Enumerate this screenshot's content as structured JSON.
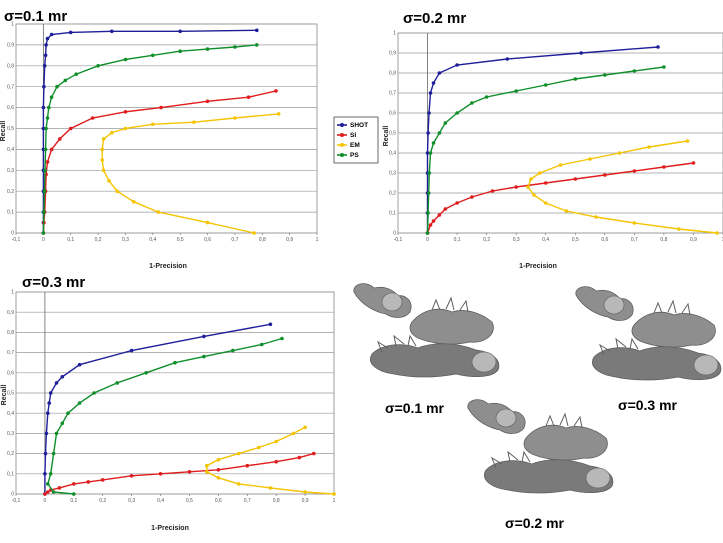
{
  "legend_entries": [
    {
      "name": "SHOT",
      "color": "#1f1f99"
    },
    {
      "name": "SI",
      "color": "#e01c1c"
    },
    {
      "name": "EM",
      "color": "#f5c400"
    },
    {
      "name": "PS",
      "color": "#0f8f2a"
    }
  ],
  "renders": [
    {
      "label": "σ=0.1 mr"
    },
    {
      "label": "σ=0.3 mr"
    },
    {
      "label": "σ=0.2 mr"
    }
  ],
  "chart_data": [
    {
      "type": "line",
      "title": "σ=0.1 mr",
      "xlabel": "1-Precision",
      "ylabel": "Recall",
      "xlim": [
        -0.1,
        1.0
      ],
      "ylim": [
        0,
        1.0
      ],
      "xticks": [
        "-0,1",
        "0",
        "0,1",
        "0,2",
        "0,3",
        "0,4",
        "0,5",
        "0,6",
        "0,7",
        "0,8",
        "0,9",
        "1"
      ],
      "yticks": [
        "0",
        "0,1",
        "0,2",
        "0,3",
        "0,4",
        "0,5",
        "0,6",
        "0,7",
        "0,8",
        "0,9",
        "1"
      ],
      "grid": true,
      "series": [
        {
          "name": "SHOT",
          "points": [
            [
              0,
              0
            ],
            [
              0,
              0.05
            ],
            [
              0,
              0.1
            ],
            [
              0,
              0.2
            ],
            [
              0,
              0.3
            ],
            [
              0,
              0.4
            ],
            [
              0,
              0.5
            ],
            [
              0,
              0.6
            ],
            [
              0.002,
              0.7
            ],
            [
              0.005,
              0.8
            ],
            [
              0.008,
              0.85
            ],
            [
              0.01,
              0.9
            ],
            [
              0.015,
              0.93
            ],
            [
              0.03,
              0.95
            ],
            [
              0.1,
              0.96
            ],
            [
              0.25,
              0.965
            ],
            [
              0.5,
              0.965
            ],
            [
              0.78,
              0.97
            ]
          ]
        },
        {
          "name": "SI",
          "points": [
            [
              0,
              0
            ],
            [
              0.002,
              0.05
            ],
            [
              0.005,
              0.1
            ],
            [
              0.008,
              0.2
            ],
            [
              0.01,
              0.28
            ],
            [
              0.015,
              0.34
            ],
            [
              0.03,
              0.4
            ],
            [
              0.06,
              0.45
            ],
            [
              0.1,
              0.5
            ],
            [
              0.18,
              0.55
            ],
            [
              0.3,
              0.58
            ],
            [
              0.43,
              0.6
            ],
            [
              0.6,
              0.63
            ],
            [
              0.75,
              0.65
            ],
            [
              0.85,
              0.68
            ]
          ]
        },
        {
          "name": "EM",
          "points": [
            [
              0.77,
              0.0
            ],
            [
              0.6,
              0.05
            ],
            [
              0.42,
              0.1
            ],
            [
              0.33,
              0.15
            ],
            [
              0.27,
              0.2
            ],
            [
              0.24,
              0.25
            ],
            [
              0.22,
              0.3
            ],
            [
              0.215,
              0.35
            ],
            [
              0.215,
              0.4
            ],
            [
              0.22,
              0.45
            ],
            [
              0.25,
              0.48
            ],
            [
              0.3,
              0.5
            ],
            [
              0.4,
              0.52
            ],
            [
              0.55,
              0.53
            ],
            [
              0.7,
              0.55
            ],
            [
              0.86,
              0.57
            ]
          ]
        },
        {
          "name": "PS",
          "points": [
            [
              0,
              0
            ],
            [
              0.002,
              0.1
            ],
            [
              0.004,
              0.2
            ],
            [
              0.006,
              0.3
            ],
            [
              0.008,
              0.4
            ],
            [
              0.01,
              0.5
            ],
            [
              0.015,
              0.55
            ],
            [
              0.02,
              0.6
            ],
            [
              0.03,
              0.65
            ],
            [
              0.05,
              0.7
            ],
            [
              0.08,
              0.73
            ],
            [
              0.12,
              0.76
            ],
            [
              0.2,
              0.8
            ],
            [
              0.3,
              0.83
            ],
            [
              0.4,
              0.85
            ],
            [
              0.5,
              0.87
            ],
            [
              0.6,
              0.88
            ],
            [
              0.7,
              0.89
            ],
            [
              0.78,
              0.9
            ]
          ]
        }
      ]
    },
    {
      "type": "line",
      "title": "σ=0.2 mr",
      "xlabel": "1-Precision",
      "ylabel": "Recall",
      "xlim": [
        -0.1,
        1.0
      ],
      "ylim": [
        0,
        1.0
      ],
      "xticks": [
        "-0,1",
        "0",
        "0,1",
        "0,2",
        "0,3",
        "0,4",
        "0,5",
        "0,6",
        "0,7",
        "0,8",
        "0,9",
        "1"
      ],
      "yticks": [
        "0",
        "0,1",
        "0,2",
        "0,3",
        "0,4",
        "0,5",
        "0,6",
        "0,7",
        "0,8",
        "0,9",
        "1"
      ],
      "grid": true,
      "series": [
        {
          "name": "SHOT",
          "points": [
            [
              0,
              0
            ],
            [
              0,
              0.1
            ],
            [
              0,
              0.2
            ],
            [
              0,
              0.3
            ],
            [
              0,
              0.4
            ],
            [
              0.002,
              0.5
            ],
            [
              0.005,
              0.6
            ],
            [
              0.01,
              0.7
            ],
            [
              0.02,
              0.75
            ],
            [
              0.04,
              0.8
            ],
            [
              0.1,
              0.84
            ],
            [
              0.27,
              0.87
            ],
            [
              0.52,
              0.9
            ],
            [
              0.78,
              0.93
            ]
          ]
        },
        {
          "name": "SI",
          "points": [
            [
              0,
              0
            ],
            [
              0.01,
              0.04
            ],
            [
              0.02,
              0.06
            ],
            [
              0.04,
              0.09
            ],
            [
              0.06,
              0.12
            ],
            [
              0.1,
              0.15
            ],
            [
              0.15,
              0.18
            ],
            [
              0.22,
              0.21
            ],
            [
              0.3,
              0.23
            ],
            [
              0.4,
              0.25
            ],
            [
              0.5,
              0.27
            ],
            [
              0.6,
              0.29
            ],
            [
              0.7,
              0.31
            ],
            [
              0.8,
              0.33
            ],
            [
              0.9,
              0.35
            ]
          ]
        },
        {
          "name": "EM",
          "points": [
            [
              0.98,
              0.0
            ],
            [
              0.85,
              0.02
            ],
            [
              0.7,
              0.05
            ],
            [
              0.57,
              0.08
            ],
            [
              0.47,
              0.11
            ],
            [
              0.4,
              0.15
            ],
            [
              0.36,
              0.19
            ],
            [
              0.34,
              0.23
            ],
            [
              0.35,
              0.27
            ],
            [
              0.38,
              0.3
            ],
            [
              0.45,
              0.34
            ],
            [
              0.55,
              0.37
            ],
            [
              0.65,
              0.4
            ],
            [
              0.75,
              0.43
            ],
            [
              0.88,
              0.46
            ]
          ]
        },
        {
          "name": "PS",
          "points": [
            [
              0,
              0
            ],
            [
              0.002,
              0.1
            ],
            [
              0.004,
              0.2
            ],
            [
              0.006,
              0.3
            ],
            [
              0.01,
              0.4
            ],
            [
              0.02,
              0.45
            ],
            [
              0.04,
              0.5
            ],
            [
              0.06,
              0.55
            ],
            [
              0.1,
              0.6
            ],
            [
              0.15,
              0.65
            ],
            [
              0.2,
              0.68
            ],
            [
              0.3,
              0.71
            ],
            [
              0.4,
              0.74
            ],
            [
              0.5,
              0.77
            ],
            [
              0.6,
              0.79
            ],
            [
              0.7,
              0.81
            ],
            [
              0.8,
              0.83
            ]
          ]
        }
      ]
    },
    {
      "type": "line",
      "title": "σ=0.3 mr",
      "xlabel": "1-Precision",
      "ylabel": "Recall",
      "xlim": [
        -0.1,
        1.0
      ],
      "ylim": [
        0,
        1.0
      ],
      "xticks": [
        "-0,1",
        "0",
        "0,1",
        "0,2",
        "0,3",
        "0,4",
        "0,5",
        "0,6",
        "0,7",
        "0,8",
        "0,9",
        "1"
      ],
      "yticks": [
        "0",
        "0,1",
        "0,2",
        "0,3",
        "0,4",
        "0,5",
        "0,6",
        "0,7",
        "0,8",
        "0,9",
        "1"
      ],
      "grid": true,
      "series": [
        {
          "name": "SHOT",
          "points": [
            [
              0,
              0
            ],
            [
              0,
              0.1
            ],
            [
              0.002,
              0.2
            ],
            [
              0.005,
              0.3
            ],
            [
              0.01,
              0.4
            ],
            [
              0.015,
              0.45
            ],
            [
              0.02,
              0.5
            ],
            [
              0.04,
              0.55
            ],
            [
              0.06,
              0.58
            ],
            [
              0.12,
              0.64
            ],
            [
              0.3,
              0.71
            ],
            [
              0.55,
              0.78
            ],
            [
              0.78,
              0.84
            ]
          ]
        },
        {
          "name": "SI",
          "points": [
            [
              0,
              0
            ],
            [
              0.01,
              0.01
            ],
            [
              0.02,
              0.02
            ],
            [
              0.05,
              0.03
            ],
            [
              0.1,
              0.05
            ],
            [
              0.15,
              0.06
            ],
            [
              0.2,
              0.07
            ],
            [
              0.3,
              0.09
            ],
            [
              0.4,
              0.1
            ],
            [
              0.5,
              0.11
            ],
            [
              0.6,
              0.12
            ],
            [
              0.7,
              0.14
            ],
            [
              0.8,
              0.16
            ],
            [
              0.88,
              0.18
            ],
            [
              0.93,
              0.2
            ]
          ]
        },
        {
          "name": "EM",
          "points": [
            [
              1.0,
              0.0
            ],
            [
              0.9,
              0.01
            ],
            [
              0.78,
              0.03
            ],
            [
              0.67,
              0.05
            ],
            [
              0.6,
              0.08
            ],
            [
              0.56,
              0.11
            ],
            [
              0.56,
              0.14
            ],
            [
              0.6,
              0.17
            ],
            [
              0.67,
              0.2
            ],
            [
              0.74,
              0.23
            ],
            [
              0.8,
              0.26
            ],
            [
              0.86,
              0.3
            ],
            [
              0.9,
              0.33
            ]
          ]
        },
        {
          "name": "PS",
          "points": [
            [
              0.1,
              0.0
            ],
            [
              0.03,
              0.01
            ],
            [
              0.01,
              0.05
            ],
            [
              0.02,
              0.1
            ],
            [
              0.03,
              0.2
            ],
            [
              0.04,
              0.3
            ],
            [
              0.06,
              0.35
            ],
            [
              0.08,
              0.4
            ],
            [
              0.12,
              0.45
            ],
            [
              0.17,
              0.5
            ],
            [
              0.25,
              0.55
            ],
            [
              0.35,
              0.6
            ],
            [
              0.45,
              0.65
            ],
            [
              0.55,
              0.68
            ],
            [
              0.65,
              0.71
            ],
            [
              0.75,
              0.74
            ],
            [
              0.82,
              0.77
            ]
          ]
        }
      ]
    }
  ]
}
